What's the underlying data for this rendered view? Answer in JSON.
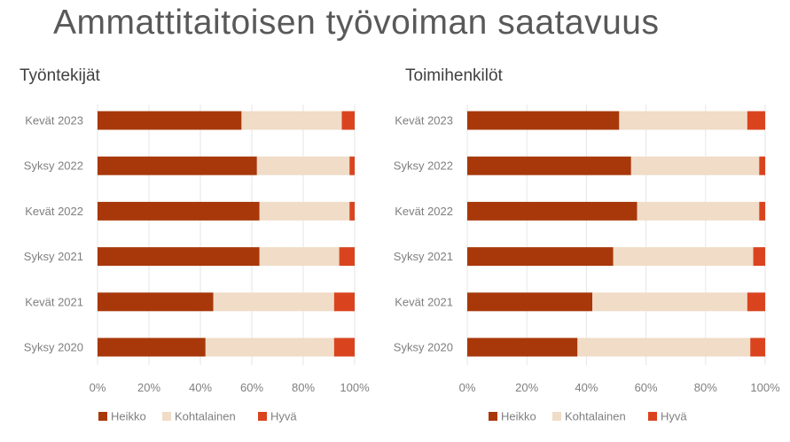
{
  "title": "Ammattitaitoisen työvoiman saatavuus",
  "colors": {
    "heikko": "#a8380a",
    "kohtalainen": "#f0dcc7",
    "hyva": "#d9441f",
    "grid": "#e6e6e6",
    "text": "#7f7f7f"
  },
  "chart_data": [
    {
      "type": "bar",
      "orientation": "horizontal",
      "stacked": true,
      "title": "Työntekijät",
      "categories": [
        "Kevät 2023",
        "Syksy 2022",
        "Kevät 2022",
        "Syksy 2021",
        "Kevät 2021",
        "Syksy 2020"
      ],
      "series": [
        {
          "name": "Heikko",
          "values": [
            56,
            62,
            63,
            63,
            45,
            42
          ]
        },
        {
          "name": "Kohtalainen",
          "values": [
            39,
            36,
            35,
            31,
            47,
            50
          ]
        },
        {
          "name": "Hyvä",
          "values": [
            5,
            2,
            2,
            6,
            8,
            8
          ]
        }
      ],
      "xlim": [
        0,
        100
      ],
      "xticks": [
        "0%",
        "20%",
        "40%",
        "60%",
        "80%",
        "100%"
      ],
      "grid": true,
      "legend": "bottom"
    },
    {
      "type": "bar",
      "orientation": "horizontal",
      "stacked": true,
      "title": "Toimihenkilöt",
      "categories": [
        "Kevät 2023",
        "Syksy 2022",
        "Kevät 2022",
        "Syksy 2021",
        "Kevät 2021",
        "Syksy 2020"
      ],
      "series": [
        {
          "name": "Heikko",
          "values": [
            51,
            55,
            57,
            49,
            42,
            37
          ]
        },
        {
          "name": "Kohtalainen",
          "values": [
            43,
            43,
            41,
            47,
            52,
            58
          ]
        },
        {
          "name": "Hyvä",
          "values": [
            6,
            2,
            2,
            4,
            6,
            5
          ]
        }
      ],
      "xlim": [
        0,
        100
      ],
      "xticks": [
        "0%",
        "20%",
        "40%",
        "60%",
        "80%",
        "100%"
      ],
      "grid": true,
      "legend": "bottom"
    }
  ]
}
